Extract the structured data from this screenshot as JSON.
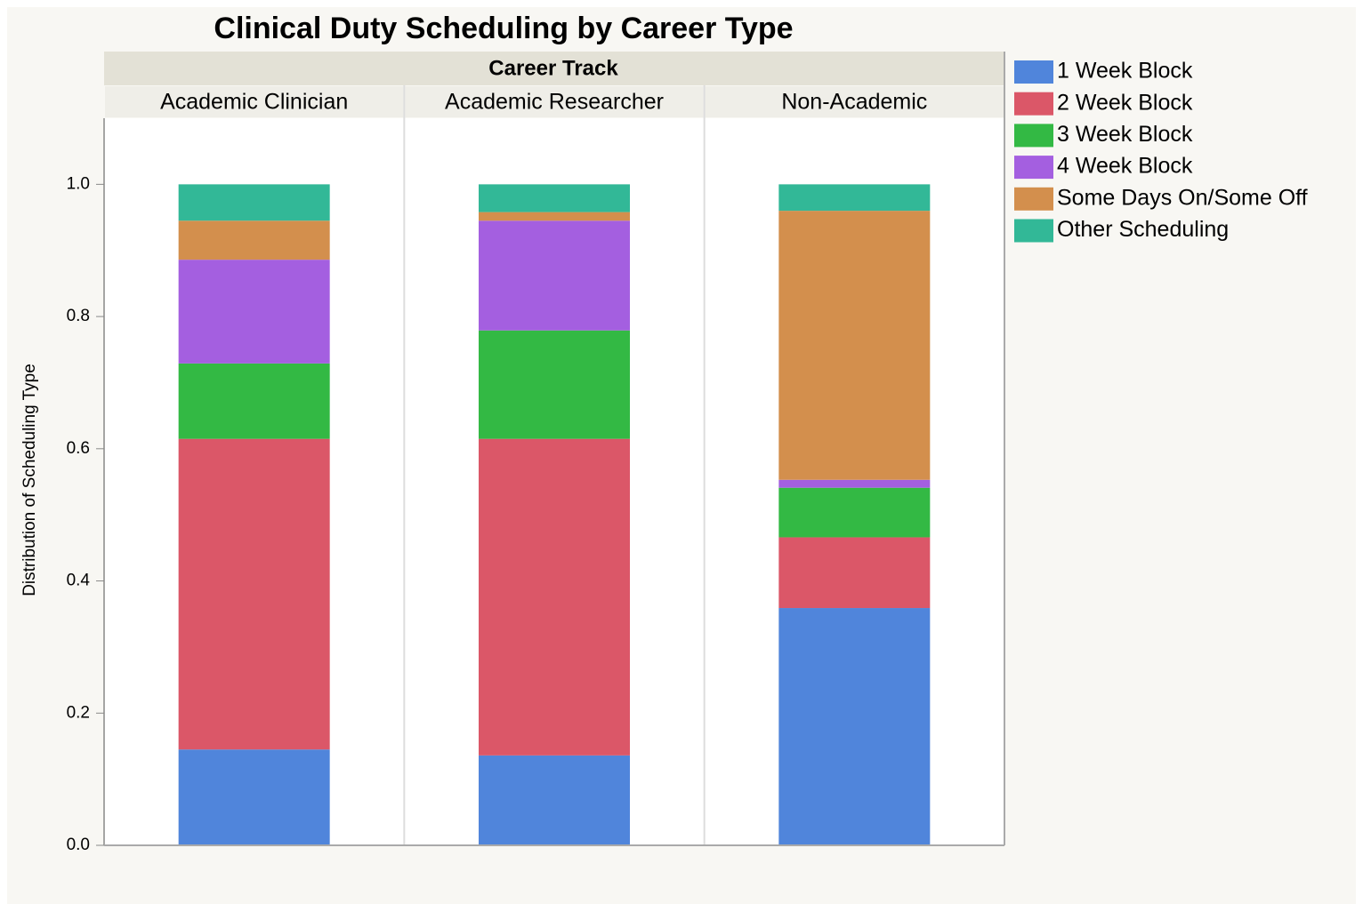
{
  "chart_data": {
    "type": "stacked_bar",
    "title": "Clinical Duty Scheduling by Career Type",
    "facet_label": "Career Track",
    "ylabel": "Distribution of Scheduling Type",
    "categories": [
      "Academic Clinician",
      "Academic Researcher",
      "Non-Academic"
    ],
    "series": [
      {
        "name": "1 Week Block",
        "color": "#5085db",
        "values": [
          0.145,
          0.136,
          0.359
        ]
      },
      {
        "name": "2 Week Block",
        "color": "#db5768",
        "values": [
          0.47,
          0.479,
          0.107
        ]
      },
      {
        "name": "3 Week Block",
        "color": "#33b944",
        "values": [
          0.114,
          0.164,
          0.075
        ]
      },
      {
        "name": "4 Week Block",
        "color": "#a45fe0",
        "values": [
          0.157,
          0.166,
          0.012
        ]
      },
      {
        "name": "Some Days On/Some Off",
        "color": "#d38f4d",
        "values": [
          0.059,
          0.013,
          0.407
        ]
      },
      {
        "name": "Other Scheduling",
        "color": "#32b897",
        "values": [
          0.055,
          0.042,
          0.04
        ]
      }
    ],
    "ylim": [
      0,
      1.1
    ],
    "yticks": [
      {
        "value": 0,
        "label": "0.0"
      },
      0.2,
      0.4,
      0.6,
      0.8,
      {
        "value": 1,
        "label": "1.0"
      }
    ],
    "legend": "right"
  }
}
